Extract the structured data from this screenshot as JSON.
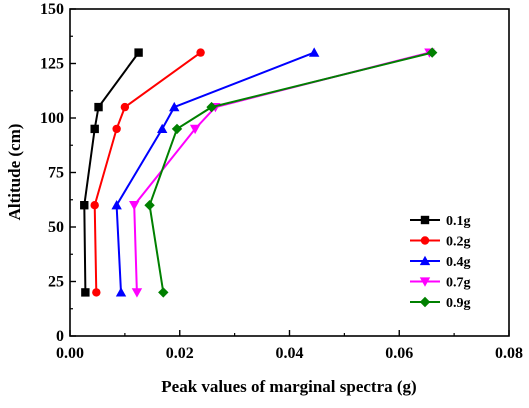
{
  "chart_data": {
    "type": "line",
    "title": "",
    "xlabel": "Peak values of marginal spectra (g)",
    "ylabel": "Altitude (cm)",
    "xlim": [
      0,
      0.08
    ],
    "ylim": [
      0,
      150
    ],
    "xticks": [
      0,
      0.02,
      0.04,
      0.06,
      0.08
    ],
    "xtick_labels": [
      "0.00",
      "0.02",
      "0.04",
      "0.06",
      "0.08"
    ],
    "yticks": [
      0,
      25,
      50,
      75,
      100,
      125,
      150
    ],
    "ytick_labels": [
      "0",
      "25",
      "50",
      "75",
      "100",
      "125",
      "150"
    ],
    "grid": false,
    "legend_position": "lower-right",
    "series": [
      {
        "name": "0.1g",
        "color": "#000000",
        "marker": "square",
        "points": [
          [
            0.0028,
            20
          ],
          [
            0.0026,
            60
          ],
          [
            0.0045,
            95
          ],
          [
            0.0052,
            105
          ],
          [
            0.0125,
            130
          ]
        ]
      },
      {
        "name": "0.2g",
        "color": "#ff0000",
        "marker": "circle",
        "points": [
          [
            0.0048,
            20
          ],
          [
            0.0045,
            60
          ],
          [
            0.0085,
            95
          ],
          [
            0.01,
            105
          ],
          [
            0.0238,
            130
          ]
        ]
      },
      {
        "name": "0.4g",
        "color": "#0000ff",
        "marker": "triangle-up",
        "points": [
          [
            0.0093,
            20
          ],
          [
            0.0085,
            60
          ],
          [
            0.0168,
            95
          ],
          [
            0.019,
            105
          ],
          [
            0.0445,
            130
          ]
        ]
      },
      {
        "name": "0.7g",
        "color": "#ff00ff",
        "marker": "triangle-down",
        "points": [
          [
            0.0122,
            20
          ],
          [
            0.0117,
            60
          ],
          [
            0.0228,
            95
          ],
          [
            0.0265,
            105
          ],
          [
            0.0655,
            130
          ]
        ]
      },
      {
        "name": "0.9g",
        "color": "#008000",
        "marker": "diamond",
        "points": [
          [
            0.017,
            20
          ],
          [
            0.0145,
            60
          ],
          [
            0.0195,
            95
          ],
          [
            0.0258,
            105
          ],
          [
            0.066,
            130
          ]
        ]
      }
    ]
  }
}
